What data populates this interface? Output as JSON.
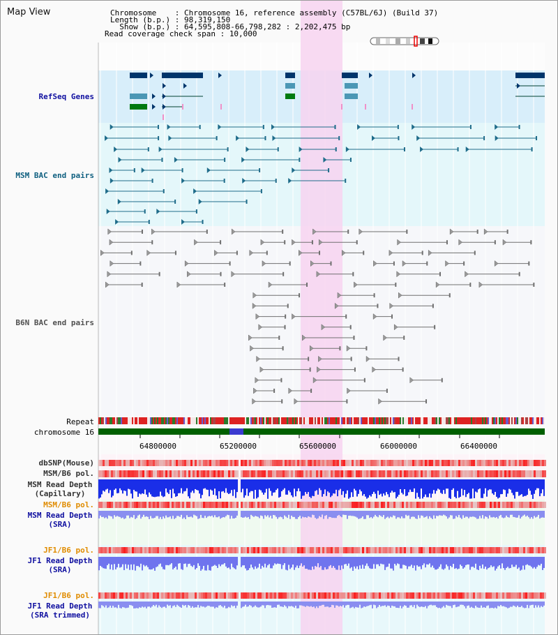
{
  "window": {
    "title": "Map View"
  },
  "header": {
    "chromosome_label": "Chromosome    : ",
    "chromosome_value": "Chromosome 16, reference assembly (C57BL/6J) (Build 37)",
    "length_label": "Length (b.p.) : ",
    "length_value": "98,319,150",
    "show_label": "  Show (b.p.) : ",
    "show_value": "64,595,808-66,798,282 : 2,202,475 bp",
    "coverage_label": "Read coverage check span : ",
    "coverage_value": "10,000"
  },
  "tracks": {
    "refseq": "RefSeq Genes",
    "msm_bac": "MSM BAC end pairs",
    "b6n_bac": "B6N BAC end pairs",
    "repeat": "Repeat",
    "chromosome": "chromosome 16",
    "dbsnp": "dbSNP(Mouse)",
    "msm_b6_pol": "MSM/B6 pol.",
    "msm_read_depth_cap_1": "MSM Read Depth",
    "msm_read_depth_cap_2": "(Capillary)",
    "msm_b6_pol_2": "MSM/B6 pol.",
    "msm_read_depth_sra_1": "MSM Read Depth",
    "msm_read_depth_sra_2": "(SRA)",
    "jf1_b6_pol": "JF1/B6 pol.",
    "jf1_read_depth_sra_1": "JF1 Read Depth",
    "jf1_read_depth_sra_2": "(SRA)",
    "jf1_b6_pol_2": "JF1/B6 pol.",
    "jf1_read_depth_trim_1": "JF1 Read Depth",
    "jf1_read_depth_trim_2": "(SRA trimmed)"
  },
  "axis": {
    "ticks": [
      "64800000",
      "65200000",
      "65600000",
      "66000000",
      "66400000"
    ]
  },
  "colors": {
    "highlight": "#f7d4f0",
    "refseq_bg": "#d8eefa",
    "msm_bg": "#e4f7fa",
    "gene_dark": "#00356b",
    "gene_teal": "#4b97b5",
    "gene_green": "#007a10",
    "msm_line": "#1f6c8a",
    "b6n_line": "#707070",
    "chromosome_bar": "#006000",
    "label_navy": "#1010a0",
    "label_orange": "#e08c00",
    "label_teal": "#106080"
  }
}
